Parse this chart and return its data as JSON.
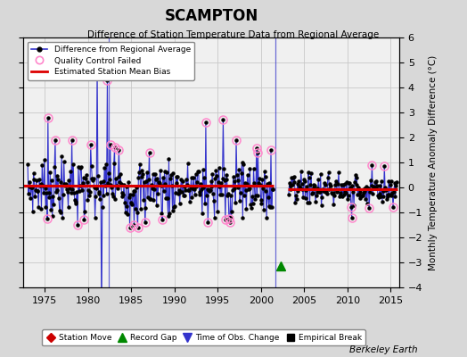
{
  "title": "SCAMPTON",
  "subtitle": "Difference of Station Temperature Data from Regional Average",
  "ylabel": "Monthly Temperature Anomaly Difference (°C)",
  "bg_color": "#d8d8d8",
  "plot_bg_color": "#f0f0f0",
  "ylim": [
    -4,
    6
  ],
  "xlim": [
    1972.5,
    2016
  ],
  "yticks": [
    -4,
    -3,
    -2,
    -1,
    0,
    1,
    2,
    3,
    4,
    5,
    6
  ],
  "xticks": [
    1975,
    1980,
    1985,
    1990,
    1995,
    2000,
    2005,
    2010,
    2015
  ],
  "bias_line_color": "#dd0000",
  "main_line_color": "#3333cc",
  "qc_fail_color": "#ff88cc",
  "grid_color": "#c8c8c8",
  "record_gap_x": 2002.25,
  "record_gap_y": -3.15,
  "time_obs_change_x": 1982.33,
  "gap_line_x": 2001.7,
  "bias1_x1": 1972.5,
  "bias1_x2": 2001.5,
  "bias1_y": 0.07,
  "bias2_x1": 2003.1,
  "bias2_x2": 2015.8,
  "bias2_y": -0.08,
  "berkeley_earth_text": "Berkeley Earth",
  "t1_start": 1973.0,
  "t1_end": 2001.4,
  "t2_start": 2003.2,
  "t2_end": 2015.7
}
